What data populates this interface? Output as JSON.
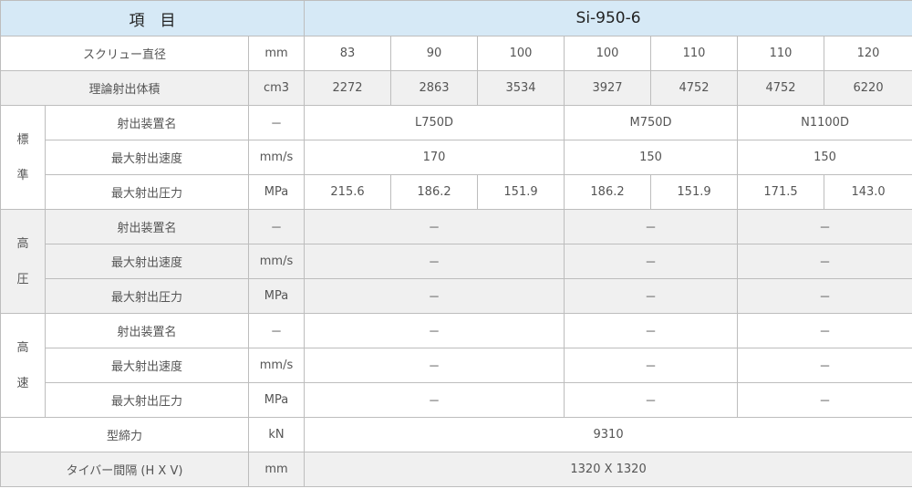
{
  "header": {
    "item_label": "項　目",
    "model": "Si-950-6"
  },
  "screw_diameter": {
    "label": "スクリュー直径",
    "unit": "mm",
    "values": [
      "83",
      "90",
      "100",
      "100",
      "110",
      "110",
      "120"
    ]
  },
  "injection_volume": {
    "label": "理論射出体積",
    "unit": "cm3",
    "values": [
      "2272",
      "2863",
      "3534",
      "3927",
      "4752",
      "4752",
      "6220"
    ]
  },
  "standard": {
    "group": [
      "標",
      "準"
    ],
    "unit_name": {
      "label": "射出装置名",
      "unit": "－",
      "values": [
        "L750D",
        "M750D",
        "N1100D"
      ]
    },
    "speed": {
      "label": "最大射出速度",
      "unit": "mm/s",
      "values": [
        "170",
        "150",
        "150"
      ]
    },
    "pressure": {
      "label": "最大射出圧力",
      "unit": "MPa",
      "values": [
        "215.6",
        "186.2",
        "151.9",
        "186.2",
        "151.9",
        "171.5",
        "143.0"
      ]
    }
  },
  "high_pressure": {
    "group": [
      "高",
      "圧"
    ],
    "unit_name": {
      "label": "射出装置名",
      "unit": "－",
      "values": [
        "－",
        "－",
        "－"
      ]
    },
    "speed": {
      "label": "最大射出速度",
      "unit": "mm/s",
      "values": [
        "－",
        "－",
        "－"
      ]
    },
    "pressure": {
      "label": "最大射出圧力",
      "unit": "MPa",
      "values": [
        "－",
        "－",
        "－"
      ]
    }
  },
  "high_speed": {
    "group": [
      "高",
      "速"
    ],
    "unit_name": {
      "label": "射出装置名",
      "unit": "－",
      "values": [
        "－",
        "－",
        "－"
      ]
    },
    "speed": {
      "label": "最大射出速度",
      "unit": "mm/s",
      "values": [
        "－",
        "－",
        "－"
      ]
    },
    "pressure": {
      "label": "最大射出圧力",
      "unit": "MPa",
      "values": [
        "－",
        "－",
        "－"
      ]
    }
  },
  "clamping_force": {
    "label": "型締力",
    "unit": "kN",
    "value": "9310"
  },
  "tie_bar": {
    "label": "タイバー間隔 (H X V)",
    "unit": "mm",
    "value": "1320 X 1320"
  },
  "colors": {
    "header_bg": "#d6e9f6",
    "shade_bg": "#f0f0f0",
    "border": "#bdbdbd"
  }
}
